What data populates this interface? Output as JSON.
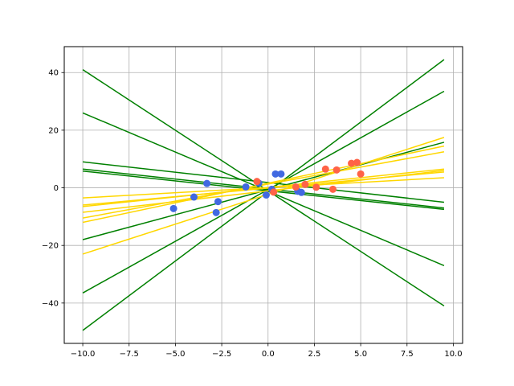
{
  "chart_data": {
    "type": "scatter",
    "title": "",
    "xlabel": "",
    "ylabel": "",
    "xlim": [
      -11.0,
      10.5
    ],
    "ylim": [
      -54.0,
      49.0
    ],
    "x_ticks": [
      -10.0,
      -7.5,
      -5.0,
      -2.5,
      0.0,
      2.5,
      5.0,
      7.5,
      10.0
    ],
    "x_tick_labels": [
      "−10.0",
      "−7.5",
      "−5.0",
      "−2.5",
      "0.0",
      "2.5",
      "5.0",
      "7.5",
      "10.0"
    ],
    "y_ticks": [
      -40,
      -20,
      0,
      20,
      40
    ],
    "y_tick_labels": [
      "−40",
      "−20",
      "0",
      "20",
      "40"
    ],
    "grid": true,
    "legend": "none",
    "colors": {
      "scatter_blue": "#4169e1",
      "scatter_red": "#ff6347",
      "line_green": "#008000",
      "line_gold": "#ffd700",
      "grid": "#b0b0b0",
      "axes": "#000000"
    },
    "scatter_points": [
      {
        "x": -5.1,
        "y": -7.2,
        "group": "blue"
      },
      {
        "x": -4.0,
        "y": -3.2,
        "group": "blue"
      },
      {
        "x": -3.3,
        "y": 1.5,
        "group": "blue"
      },
      {
        "x": -2.7,
        "y": -4.8,
        "group": "blue"
      },
      {
        "x": -2.8,
        "y": -8.6,
        "group": "blue"
      },
      {
        "x": -1.2,
        "y": 0.3,
        "group": "blue"
      },
      {
        "x": -0.5,
        "y": 1.6,
        "group": "blue"
      },
      {
        "x": -0.1,
        "y": -2.5,
        "group": "blue"
      },
      {
        "x": 0.2,
        "y": -0.5,
        "group": "blue"
      },
      {
        "x": 0.4,
        "y": 4.8,
        "group": "blue"
      },
      {
        "x": 0.7,
        "y": 4.8,
        "group": "blue"
      },
      {
        "x": 1.6,
        "y": -1.2,
        "group": "blue"
      },
      {
        "x": 1.8,
        "y": -1.6,
        "group": "blue"
      },
      {
        "x": -0.6,
        "y": 2.2,
        "group": "red"
      },
      {
        "x": 0.3,
        "y": -1.5,
        "group": "red"
      },
      {
        "x": 1.5,
        "y": 0.3,
        "group": "red"
      },
      {
        "x": 2.0,
        "y": 1.2,
        "group": "red"
      },
      {
        "x": 2.6,
        "y": 0.2,
        "group": "red"
      },
      {
        "x": 3.1,
        "y": 6.5,
        "group": "red"
      },
      {
        "x": 3.5,
        "y": -0.5,
        "group": "red"
      },
      {
        "x": 3.7,
        "y": 6.2,
        "group": "red"
      },
      {
        "x": 4.5,
        "y": 8.5,
        "group": "red"
      },
      {
        "x": 4.8,
        "y": 8.8,
        "group": "red"
      },
      {
        "x": 5.0,
        "y": 4.8,
        "group": "red"
      }
    ],
    "lines": [
      {
        "color": "green",
        "x": [
          -10.0,
          9.5
        ],
        "y": [
          41.0,
          -41.0
        ]
      },
      {
        "color": "green",
        "x": [
          -10.0,
          9.5
        ],
        "y": [
          -49.5,
          44.5
        ]
      },
      {
        "color": "green",
        "x": [
          -10.0,
          9.5
        ],
        "y": [
          26.0,
          -27.0
        ]
      },
      {
        "color": "green",
        "x": [
          -10.0,
          9.5
        ],
        "y": [
          -36.5,
          33.5
        ]
      },
      {
        "color": "green",
        "x": [
          -10.0,
          9.5
        ],
        "y": [
          -18.0,
          15.8
        ]
      },
      {
        "color": "green",
        "x": [
          -10.0,
          9.5
        ],
        "y": [
          9.0,
          -5.0
        ]
      },
      {
        "color": "green",
        "x": [
          -10.0,
          9.5
        ],
        "y": [
          6.5,
          -7.0
        ]
      },
      {
        "color": "green",
        "x": [
          -10.0,
          9.5
        ],
        "y": [
          5.8,
          -7.5
        ]
      },
      {
        "color": "gold",
        "x": [
          -10.0,
          9.5
        ],
        "y": [
          -23.0,
          17.5
        ]
      },
      {
        "color": "gold",
        "x": [
          -10.0,
          9.5
        ],
        "y": [
          -12.0,
          14.5
        ]
      },
      {
        "color": "gold",
        "x": [
          -10.0,
          9.5
        ],
        "y": [
          -10.5,
          12.5
        ]
      },
      {
        "color": "gold",
        "x": [
          -10.0,
          9.5
        ],
        "y": [
          -8.5,
          6.0
        ]
      },
      {
        "color": "gold",
        "x": [
          -10.0,
          9.5
        ],
        "y": [
          -6.5,
          6.5
        ]
      },
      {
        "color": "gold",
        "x": [
          -10.0,
          9.5
        ],
        "y": [
          -6.0,
          5.5
        ]
      },
      {
        "color": "gold",
        "x": [
          -10.0,
          9.5
        ],
        "y": [
          -3.5,
          3.5
        ]
      }
    ]
  }
}
